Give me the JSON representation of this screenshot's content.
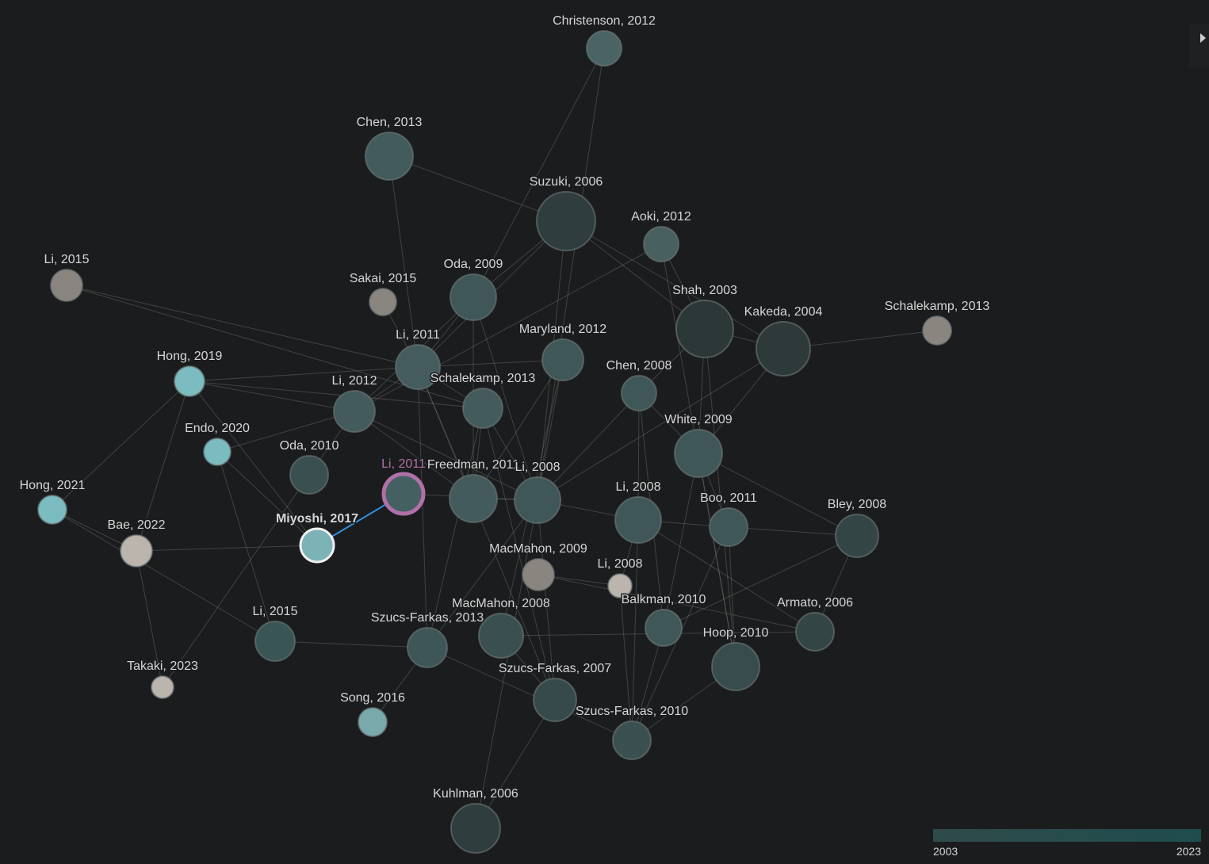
{
  "nodes": [
    {
      "label": "Christenson, 2012"
    },
    {
      "label": "Chen, 2013"
    },
    {
      "label": "Suzuki, 2006"
    },
    {
      "label": "Aoki, 2012"
    },
    {
      "label": "Li, 2015"
    },
    {
      "label": "Sakai, 2015"
    },
    {
      "label": "Oda, 2009"
    },
    {
      "label": "Shah, 2003"
    },
    {
      "label": "Kakeda, 2004"
    },
    {
      "label": "Schalekamp, 2013"
    },
    {
      "label": "Maryland, 2012"
    },
    {
      "label": "Li, 2011"
    },
    {
      "label": "Hong, 2019"
    },
    {
      "label": "Chen, 2008"
    },
    {
      "label": "Li, 2012"
    },
    {
      "label": "Schalekamp, 2013"
    },
    {
      "label": "Endo, 2020"
    },
    {
      "label": "White, 2009"
    },
    {
      "label": "Oda, 2010"
    },
    {
      "label": "Hong, 2021"
    },
    {
      "label": "Li, 2011"
    },
    {
      "label": "Freedman, 2011"
    },
    {
      "label": "Li, 2008"
    },
    {
      "label": "Li, 2008"
    },
    {
      "label": "Boo, 2011"
    },
    {
      "label": "Bley, 2008"
    },
    {
      "label": "Bae, 2022"
    },
    {
      "label": "Miyoshi, 2017"
    },
    {
      "label": "MacMahon, 2009"
    },
    {
      "label": "Li, 2008"
    },
    {
      "label": "Balkman, 2010"
    },
    {
      "label": "Armato, 2006"
    },
    {
      "label": "MacMahon, 2008"
    },
    {
      "label": "Szucs-Farkas, 2013"
    },
    {
      "label": "Li, 2015"
    },
    {
      "label": "Takaki, 2023"
    },
    {
      "label": "Hoop, 2010"
    },
    {
      "label": "Szucs-Farkas, 2007"
    },
    {
      "label": "Song, 2016"
    },
    {
      "label": "Szucs-Farkas, 2010"
    },
    {
      "label": "Kuhlman, 2006"
    }
  ],
  "legend": {
    "min_label": "2003",
    "max_label": "2023"
  }
}
